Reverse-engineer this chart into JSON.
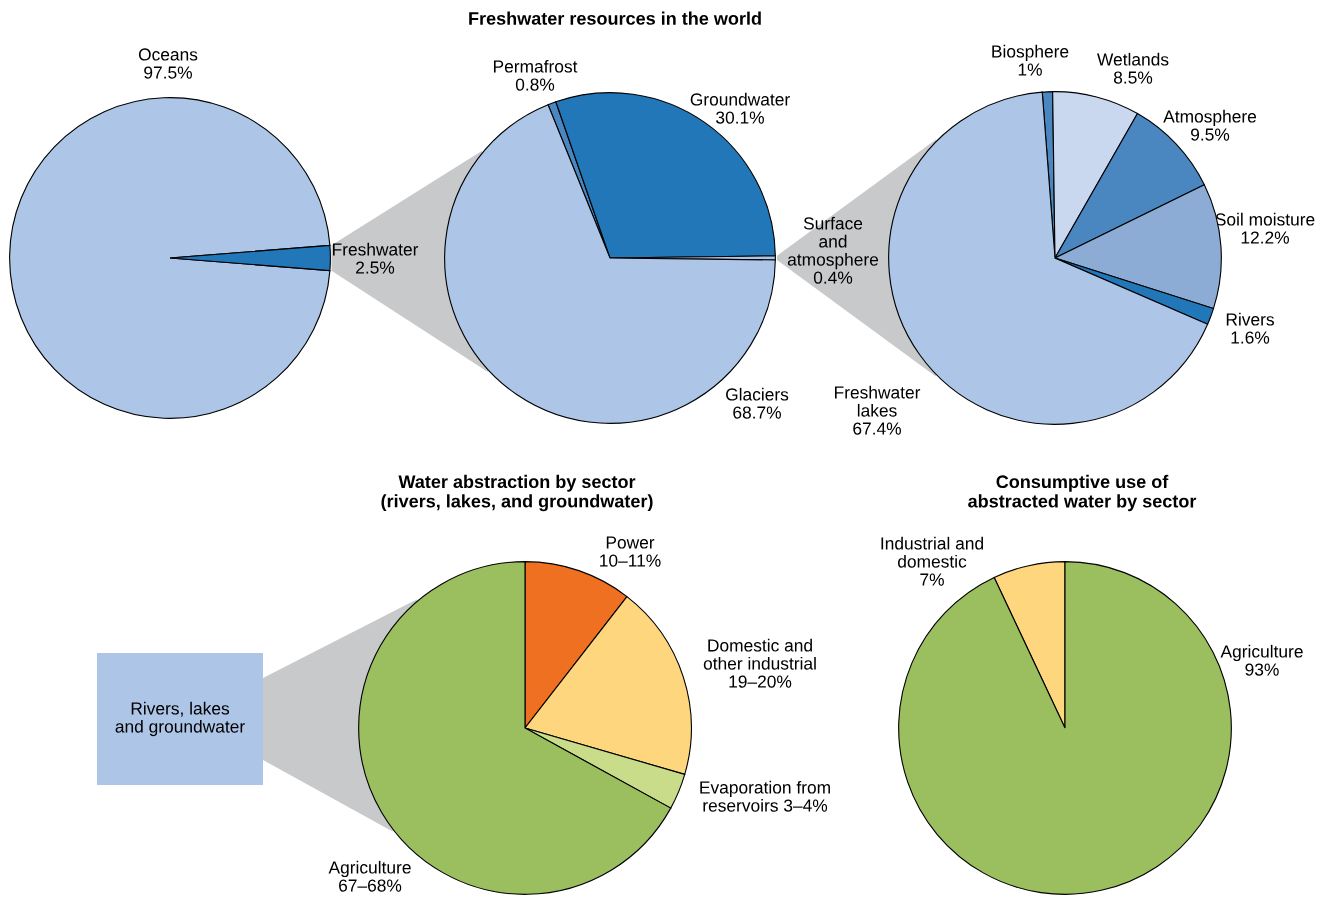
{
  "chart_data": [
    {
      "type": "pie",
      "categories": [
        "Oceans",
        "Freshwater"
      ],
      "values": [
        97.5,
        2.5
      ],
      "colors": [
        "#adc6e8",
        "#2277b8"
      ],
      "value_labels": [
        "97.5%",
        "2.5%"
      ]
    },
    {
      "type": "pie",
      "title": "Freshwater resources in the world",
      "categories": [
        "Permafrost",
        "Groundwater",
        "Surface\nand\natmosphere",
        "Glaciers"
      ],
      "values": [
        0.8,
        30.1,
        0.4,
        68.7
      ],
      "colors": [
        "#4a86c0",
        "#2277b8",
        "#adc6e8",
        "#adc6e8"
      ],
      "value_labels": [
        "0.8%",
        "30.1%",
        "0.4%",
        "68.7%"
      ]
    },
    {
      "type": "pie",
      "categories": [
        "Biosphere",
        "Wetlands",
        "Atmosphere",
        "Soil moisture",
        "Rivers",
        "Freshwater\nlakes"
      ],
      "values": [
        1,
        8.5,
        9.5,
        12.2,
        1.6,
        67.4
      ],
      "colors": [
        "#4a86c0",
        "#c9d7ef",
        "#4a86c0",
        "#8cacd6",
        "#2277b8",
        "#adc6e8"
      ],
      "value_labels": [
        "1%",
        "8.5%",
        "9.5%",
        "12.2%",
        "1.6%",
        "67.4%"
      ]
    },
    {
      "type": "pie",
      "title": "Water abstraction by sector\n(rivers, lakes, and groundwater)",
      "categories": [
        "Power",
        "Domestic and\nother industrial",
        "Evaporation from\nreservoirs",
        "Agriculture"
      ],
      "values": [
        10.5,
        19,
        3.5,
        67
      ],
      "colors": [
        "#f07022",
        "#fdd67e",
        "#c9dc8a",
        "#9bbf5f"
      ],
      "value_labels": [
        "10–11%",
        "19–20%",
        "3–4%",
        "67–68%"
      ],
      "annotations": [
        "Rivers, lakes\nand groundwater"
      ]
    },
    {
      "type": "pie",
      "title": "Consumptive use of\nabstracted water by sector",
      "categories": [
        "Industrial and\ndomestic",
        "Agriculture"
      ],
      "values": [
        7,
        93
      ],
      "colors": [
        "#fdd67e",
        "#9bbf5f"
      ],
      "value_labels": [
        "7%",
        "93%"
      ]
    }
  ]
}
